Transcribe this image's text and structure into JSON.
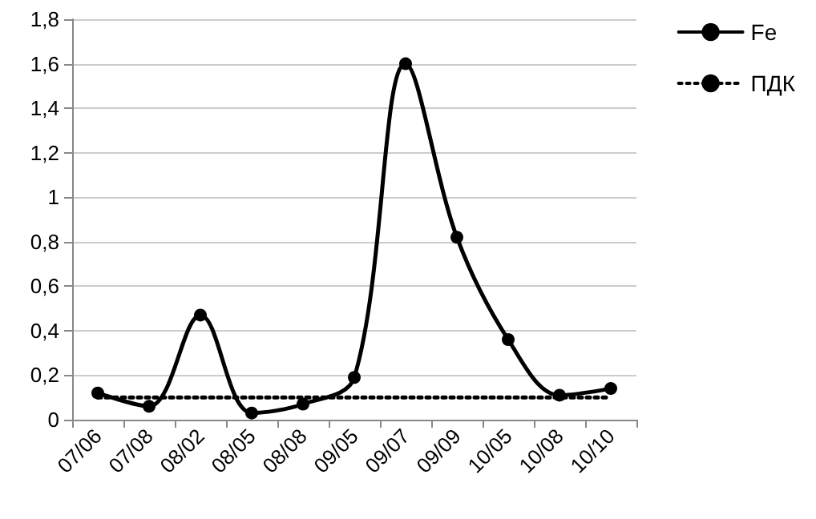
{
  "chart_data": {
    "type": "line",
    "categories": [
      "07/06",
      "07/08",
      "08/02",
      "08/05",
      "08/08",
      "09/05",
      "09/07",
      "09/09",
      "10/05",
      "10/08",
      "10/10"
    ],
    "series": [
      {
        "name": "Fe",
        "color": "#000000",
        "values": [
          0.12,
          0.06,
          0.47,
          0.03,
          0.07,
          0.19,
          1.6,
          0.82,
          0.36,
          0.11,
          0.14
        ],
        "marker": "circle",
        "line_style": "solid"
      },
      {
        "name": "ПДК",
        "color": "#000000",
        "values": [
          0.1,
          0.1,
          0.1,
          0.1,
          0.1,
          0.1,
          0.1,
          0.1,
          0.1,
          0.1,
          0.1
        ],
        "marker": "none",
        "line_style": "dotted"
      }
    ],
    "ylim": [
      0,
      1.8
    ],
    "yticks": [
      0,
      {
        "value": 0.2,
        "label": "0,2"
      },
      {
        "value": 0.4,
        "label": "0,4"
      },
      {
        "value": 0.6,
        "label": "0,6"
      },
      {
        "value": 0.8,
        "label": "0,8"
      },
      1,
      {
        "value": 1.2,
        "label": "1,2"
      },
      {
        "value": 1.4,
        "label": "1,4"
      },
      {
        "value": 1.6,
        "label": "1,6"
      },
      {
        "value": 1.8,
        "label": "1,8"
      }
    ],
    "grid": "y",
    "legend": "right"
  }
}
